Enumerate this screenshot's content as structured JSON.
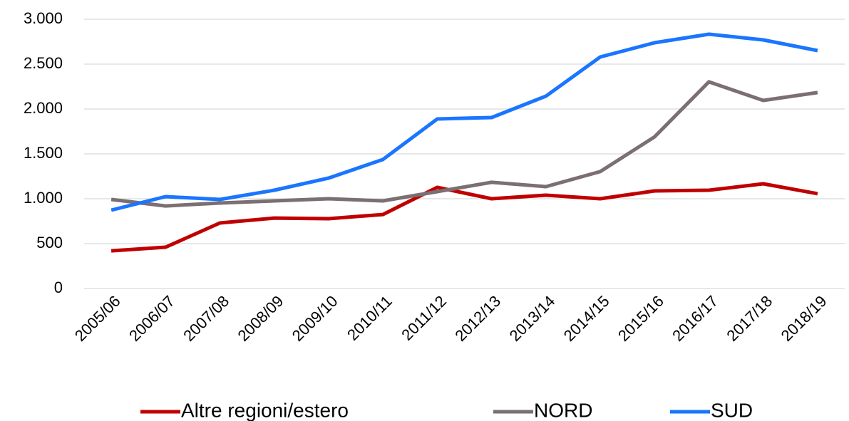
{
  "chart_data": {
    "type": "line",
    "categories": [
      "2005/06",
      "2006/07",
      "2007/08",
      "2008/09",
      "2009/10",
      "2010/11",
      "2011/12",
      "2012/13",
      "2013/14",
      "2014/15",
      "2015/16",
      "2016/17",
      "2017/18",
      "2018/19"
    ],
    "series": [
      {
        "name": "Altre regioni/estero",
        "color": "#c00000",
        "values": [
          420,
          460,
          730,
          785,
          778,
          825,
          1127,
          1000,
          1040,
          1000,
          1087,
          1095,
          1167,
          1056
        ]
      },
      {
        "name": "NORD",
        "color": "#7b6f72",
        "values": [
          992,
          920,
          952,
          976,
          1000,
          976,
          1079,
          1183,
          1135,
          1302,
          1690,
          2302,
          2095,
          2183
        ]
      },
      {
        "name": "SUD",
        "color": "#1a75ff",
        "values": [
          873,
          1024,
          992,
          1095,
          1230,
          1437,
          1889,
          1905,
          2143,
          2579,
          2738,
          2833,
          2770,
          2651
        ]
      }
    ],
    "ylim": [
      0,
      3000
    ],
    "yticks": [
      0,
      {
        "value": 500,
        "label": "500"
      },
      {
        "value": 1000,
        "label": "1.000"
      },
      {
        "value": 1500,
        "label": "1.500"
      },
      {
        "value": 2000,
        "label": "2.000"
      },
      {
        "value": 2500,
        "label": "2.500"
      },
      {
        "value": 3000,
        "label": "3.000"
      }
    ],
    "grid": true,
    "legend": "bottom"
  }
}
